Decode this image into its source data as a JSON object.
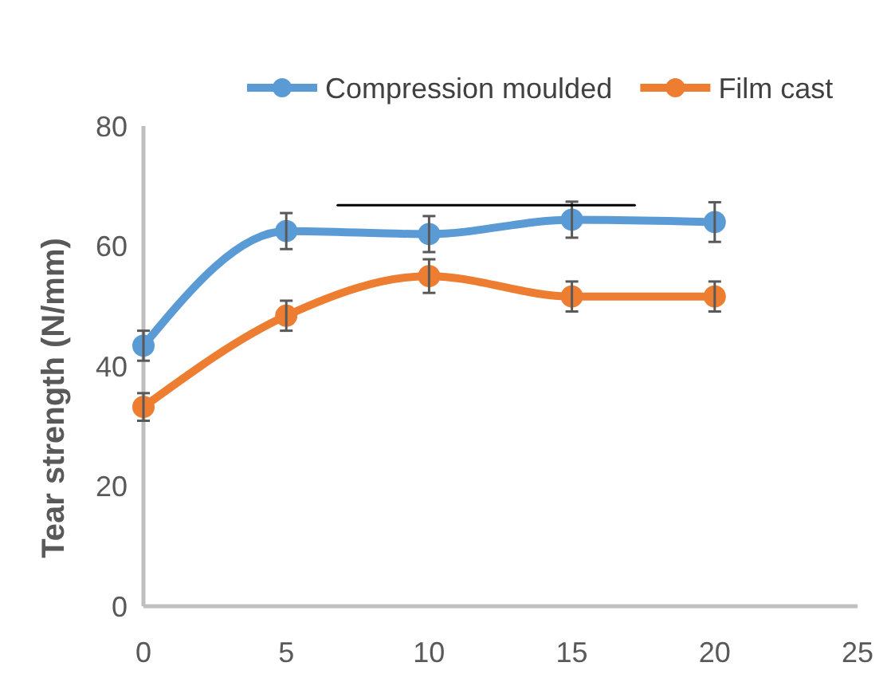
{
  "chart_data": {
    "type": "line",
    "ylabel": "Tear strength (N/mm)",
    "x": [
      0,
      5,
      10,
      15,
      20
    ],
    "xlim": [
      0,
      25
    ],
    "xticks": [
      0,
      5,
      10,
      15,
      20,
      25
    ],
    "ylim": [
      0,
      80
    ],
    "yticks": [
      0,
      20,
      40,
      60,
      80
    ],
    "grid": false,
    "legend": "top",
    "marker": "circle",
    "series": [
      {
        "name": "Compression moulded",
        "color": "#5b9bd5",
        "values": [
          43.4,
          62.5,
          62,
          64.4,
          64
        ],
        "errors": [
          2.5,
          3,
          3,
          3,
          3.3
        ]
      },
      {
        "name": "Film cast",
        "color": "#ed7d31",
        "values": [
          33.2,
          48.4,
          55,
          51.6,
          51.6
        ],
        "errors": [
          2.3,
          2.5,
          2.8,
          2.5,
          2.5
        ]
      },
      {
        "type": "line",
        "color": "#000000",
        "marker": "none",
        "x": [
          6.8,
          17.2
        ],
        "values": [
          66.8,
          66.8
        ]
      }
    ]
  }
}
